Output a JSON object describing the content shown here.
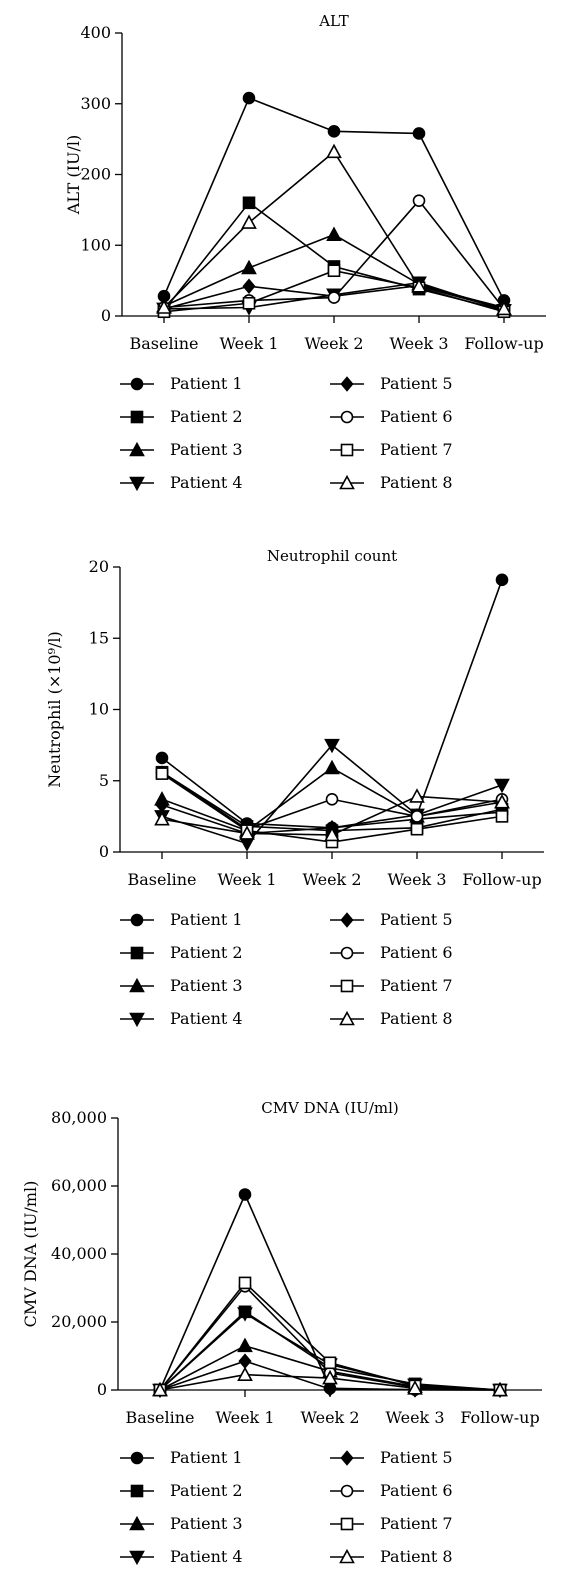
{
  "marker_shapes": [
    "circle-filled",
    "square-filled",
    "triangle-up-filled",
    "triangle-down-filled",
    "diamond-filled",
    "circle-open",
    "square-open",
    "triangle-up-open"
  ],
  "charts": [
    {
      "type": "line",
      "title": "ALT",
      "ylabel": "ALT (IU/l)",
      "categories": [
        "Baseline",
        "Week 1",
        "Week 2",
        "Week 3",
        "Follow-up"
      ],
      "yticks": [
        "0",
        "100",
        "200",
        "300",
        "400"
      ],
      "ylim": [
        0,
        400
      ],
      "series": [
        {
          "name": "Patient 1",
          "values": [
            28,
            308,
            261,
            258,
            22
          ]
        },
        {
          "name": "Patient 2",
          "values": [
            8,
            160,
            70,
            38,
            8
          ]
        },
        {
          "name": "Patient 3",
          "values": [
            14,
            68,
            115,
            45,
            10
          ]
        },
        {
          "name": "Patient 4",
          "values": [
            10,
            12,
            30,
            47,
            8
          ]
        },
        {
          "name": "Patient 5",
          "values": [
            10,
            42,
            28,
            43,
            12
          ]
        },
        {
          "name": "Patient 6",
          "values": [
            12,
            22,
            26,
            163,
            10
          ]
        },
        {
          "name": "Patient 7",
          "values": [
            6,
            18,
            64,
            40,
            6
          ]
        },
        {
          "name": "Patient 8",
          "values": [
            12,
            132,
            232,
            42,
            10
          ]
        }
      ]
    },
    {
      "type": "line",
      "title": "Neutrophil count",
      "ylabel": "Neutrophil (×10⁹/l)",
      "categories": [
        "Baseline",
        "Week 1",
        "Week 2",
        "Week 3",
        "Follow-up"
      ],
      "yticks": [
        "0",
        "5",
        "10",
        "15",
        "20"
      ],
      "ylim": [
        0,
        20
      ],
      "series": [
        {
          "name": "Patient 1",
          "values": [
            6.6,
            2.0,
            1.7,
            2.6,
            19.1
          ]
        },
        {
          "name": "Patient 2",
          "values": [
            5.6,
            1.8,
            1.5,
            1.7,
            3.0
          ]
        },
        {
          "name": "Patient 3",
          "values": [
            3.7,
            1.5,
            5.9,
            2.5,
            3.5
          ]
        },
        {
          "name": "Patient 4",
          "values": [
            2.5,
            0.6,
            7.5,
            2.6,
            4.7
          ]
        },
        {
          "name": "Patient 5",
          "values": [
            3.3,
            1.3,
            1.7,
            2.3,
            2.8
          ]
        },
        {
          "name": "Patient 6",
          "values": [
            5.6,
            1.6,
            3.7,
            2.5,
            3.7
          ]
        },
        {
          "name": "Patient 7",
          "values": [
            5.5,
            1.5,
            0.7,
            1.6,
            2.5
          ]
        },
        {
          "name": "Patient 8",
          "values": [
            2.3,
            1.3,
            1.2,
            3.9,
            3.5
          ]
        }
      ]
    },
    {
      "type": "line",
      "title": "CMV DNA (IU/ml)",
      "ylabel": "CMV DNA (IU/ml)",
      "categories": [
        "Baseline",
        "Week 1",
        "Week 2",
        "Week 3",
        "Follow-up"
      ],
      "yticks": [
        "0",
        "20,000",
        "40,000",
        "60,000",
        "80,000"
      ],
      "ylim": [
        0,
        80000
      ],
      "series": [
        {
          "name": "Patient 1",
          "values": [
            0,
            57500,
            500,
            100,
            0
          ]
        },
        {
          "name": "Patient 2",
          "values": [
            0,
            23000,
            6500,
            1800,
            0
          ]
        },
        {
          "name": "Patient 3",
          "values": [
            0,
            13000,
            5500,
            1000,
            0
          ]
        },
        {
          "name": "Patient 4",
          "values": [
            0,
            22500,
            7500,
            1500,
            0
          ]
        },
        {
          "name": "Patient 5",
          "values": [
            0,
            8500,
            300,
            50,
            0
          ]
        },
        {
          "name": "Patient 6",
          "values": [
            0,
            30500,
            5000,
            800,
            0
          ]
        },
        {
          "name": "Patient 7",
          "values": [
            0,
            31500,
            8000,
            1200,
            0
          ]
        },
        {
          "name": "Patient 8",
          "values": [
            0,
            4500,
            3500,
            500,
            0
          ]
        }
      ]
    }
  ]
}
